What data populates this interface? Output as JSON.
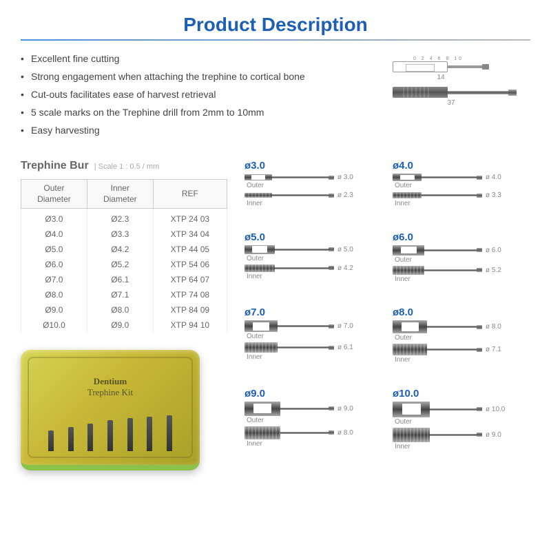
{
  "title": "Product Description",
  "title_color": "#1e5fb3",
  "underline_gradient": "linear-gradient(90deg, #4a90d9 0%, #bbb 100%)",
  "bullets": [
    "Excellent fine cutting",
    "Strong engagement when attaching the trephine to cortical bone",
    "Cut-outs facilitates ease of harvest retrieval",
    "5 scale marks on the Trephine drill from 2mm to 10mm",
    "Easy harvesting"
  ],
  "top_diagram": {
    "scale_marks": "0 2 4 6 8 10",
    "dim_short": "14",
    "dim_long": "37"
  },
  "table": {
    "title": "Trephine Bur",
    "subtitle": "|  Scale 1 : 0.5 / mm",
    "columns": [
      "Outer\nDiameter",
      "Inner\nDiameter",
      "REF"
    ],
    "rows": [
      [
        "Ø3.0",
        "Ø2.3",
        "XTP 24 03"
      ],
      [
        "Ø4.0",
        "Ø3.3",
        "XTP 34 04"
      ],
      [
        "Ø5.0",
        "Ø4.2",
        "XTP 44 05"
      ],
      [
        "Ø6.0",
        "Ø5.2",
        "XTP 54 06"
      ],
      [
        "Ø7.0",
        "Ø6.1",
        "XTP 64 07"
      ],
      [
        "Ø8.0",
        "Ø7.1",
        "XTP 74 08"
      ],
      [
        "Ø9.0",
        "Ø8.0",
        "XTP 84 09"
      ],
      [
        "Ø10.0",
        "Ø9.0",
        "XTP 94 10"
      ]
    ]
  },
  "kit": {
    "brand": "Dentium",
    "name": "Trephine Kit",
    "drill_heights": [
      30,
      35,
      40,
      45,
      48,
      50,
      52
    ]
  },
  "size_color": "#1e5fb3",
  "labels": {
    "outer": "Outer",
    "inner": "Inner"
  },
  "sizes": [
    {
      "label": "ø3.0",
      "outer_phi": "ø 3.0",
      "inner_phi": "ø 2.3",
      "head_w": 40,
      "head_h": 9
    },
    {
      "label": "ø4.0",
      "outer_phi": "ø 4.0",
      "inner_phi": "ø 3.3",
      "head_w": 42,
      "head_h": 11
    },
    {
      "label": "ø5.0",
      "outer_phi": "ø 5.0",
      "inner_phi": "ø 4.2",
      "head_w": 44,
      "head_h": 13
    },
    {
      "label": "ø6.0",
      "outer_phi": "ø 6.0",
      "inner_phi": "ø 5.2",
      "head_w": 46,
      "head_h": 15
    },
    {
      "label": "ø7.0",
      "outer_phi": "ø 7.0",
      "inner_phi": "ø 6.1",
      "head_w": 48,
      "head_h": 17
    },
    {
      "label": "ø8.0",
      "outer_phi": "ø 8.0",
      "inner_phi": "ø 7.1",
      "head_w": 50,
      "head_h": 19
    },
    {
      "label": "ø9.0",
      "outer_phi": "ø 9.0",
      "inner_phi": "ø 8.0",
      "head_w": 52,
      "head_h": 21
    },
    {
      "label": "ø10.0",
      "outer_phi": "ø 10.0",
      "inner_phi": "ø 9.0",
      "head_w": 54,
      "head_h": 23
    }
  ]
}
